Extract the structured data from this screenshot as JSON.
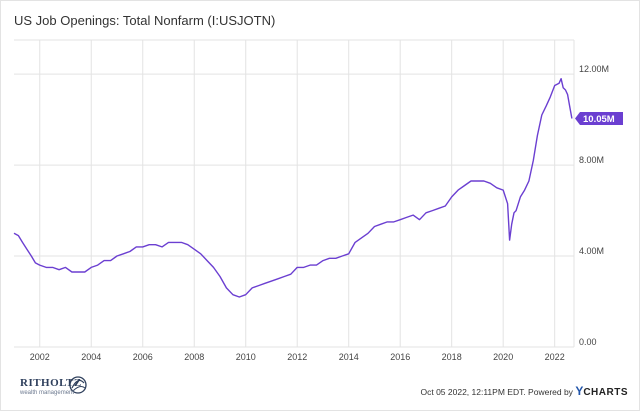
{
  "chart_data": {
    "type": "line",
    "title": "US Job Openings: Total Nonfarm (I:USJOTN)",
    "xlabel": "",
    "ylabel": "",
    "xlim": [
      2001.0,
      2022.75
    ],
    "ylim": [
      0,
      13.5
    ],
    "x_ticks": [
      2002,
      2004,
      2006,
      2008,
      2010,
      2012,
      2014,
      2016,
      2018,
      2020,
      2022
    ],
    "y_ticks": [
      {
        "value": 0,
        "label": "0.00"
      },
      {
        "value": 4,
        "label": "4.00M"
      },
      {
        "value": 8,
        "label": "8.00M"
      },
      {
        "value": 12,
        "label": "12.00M"
      }
    ],
    "grid": true,
    "last_value_label": "10.05M",
    "series": [
      {
        "color": "#6b3fd1",
        "x": [
          2001.0,
          2001.17,
          2001.33,
          2001.5,
          2001.67,
          2001.83,
          2002.0,
          2002.25,
          2002.5,
          2002.75,
          2003.0,
          2003.25,
          2003.5,
          2003.75,
          2004.0,
          2004.25,
          2004.5,
          2004.75,
          2005.0,
          2005.25,
          2005.5,
          2005.75,
          2006.0,
          2006.25,
          2006.5,
          2006.75,
          2007.0,
          2007.25,
          2007.5,
          2007.75,
          2008.0,
          2008.25,
          2008.5,
          2008.75,
          2009.0,
          2009.25,
          2009.5,
          2009.75,
          2010.0,
          2010.25,
          2010.5,
          2010.75,
          2011.0,
          2011.25,
          2011.5,
          2011.75,
          2012.0,
          2012.25,
          2012.5,
          2012.75,
          2013.0,
          2013.25,
          2013.5,
          2013.75,
          2014.0,
          2014.25,
          2014.5,
          2014.75,
          2015.0,
          2015.25,
          2015.5,
          2015.75,
          2016.0,
          2016.25,
          2016.5,
          2016.75,
          2017.0,
          2017.25,
          2017.5,
          2017.75,
          2018.0,
          2018.25,
          2018.5,
          2018.75,
          2019.0,
          2019.25,
          2019.5,
          2019.75,
          2020.0,
          2020.17,
          2020.25,
          2020.33,
          2020.42,
          2020.5,
          2020.67,
          2020.83,
          2021.0,
          2021.17,
          2021.33,
          2021.5,
          2021.67,
          2021.83,
          2022.0,
          2022.17,
          2022.25,
          2022.33,
          2022.42,
          2022.5,
          2022.58,
          2022.67
        ],
        "values": [
          5.0,
          4.9,
          4.6,
          4.3,
          4.0,
          3.7,
          3.6,
          3.5,
          3.5,
          3.4,
          3.5,
          3.3,
          3.3,
          3.3,
          3.5,
          3.6,
          3.8,
          3.8,
          4.0,
          4.1,
          4.2,
          4.4,
          4.4,
          4.5,
          4.5,
          4.4,
          4.6,
          4.6,
          4.6,
          4.5,
          4.3,
          4.1,
          3.8,
          3.5,
          3.1,
          2.6,
          2.3,
          2.2,
          2.3,
          2.6,
          2.7,
          2.8,
          2.9,
          3.0,
          3.1,
          3.2,
          3.5,
          3.5,
          3.6,
          3.6,
          3.8,
          3.9,
          3.9,
          4.0,
          4.1,
          4.6,
          4.8,
          5.0,
          5.3,
          5.4,
          5.5,
          5.5,
          5.6,
          5.7,
          5.8,
          5.6,
          5.9,
          6.0,
          6.1,
          6.2,
          6.6,
          6.9,
          7.1,
          7.3,
          7.3,
          7.3,
          7.2,
          7.0,
          6.9,
          6.3,
          4.7,
          5.4,
          5.9,
          6.0,
          6.6,
          6.9,
          7.3,
          8.2,
          9.3,
          10.2,
          10.6,
          11.0,
          11.5,
          11.6,
          11.8,
          11.4,
          11.3,
          11.1,
          10.6,
          10.05
        ]
      }
    ]
  },
  "footer": {
    "brand_main": "RITHOLTZ",
    "brand_sub": "wealth management",
    "attribution": "Oct 05 2022, 12:11PM EDT. Powered by ",
    "ycharts_y": "Y",
    "ycharts_rest": "CHARTS"
  },
  "colors": {
    "line": "#6b3fd1",
    "grid": "#e3e3e3",
    "brand": "#2e3f5c"
  }
}
